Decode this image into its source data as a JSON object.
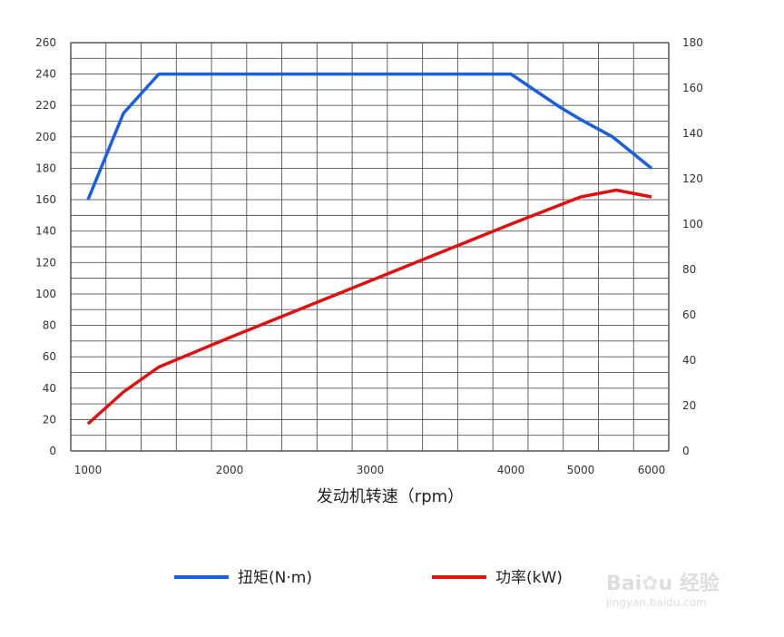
{
  "chart_data": {
    "type": "line",
    "xlabel": "发动机转速（rpm）",
    "x_ticks": [
      1000,
      2000,
      3000,
      4000,
      5000,
      6000
    ],
    "y_left": {
      "lim": [
        0,
        260
      ],
      "ticks": [
        0,
        20,
        40,
        60,
        80,
        100,
        120,
        140,
        160,
        180,
        200,
        220,
        240,
        260
      ]
    },
    "y_right": {
      "lim": [
        0,
        180
      ],
      "ticks": [
        0,
        20,
        40,
        60,
        80,
        100,
        120,
        140,
        160,
        180
      ]
    },
    "grid": true,
    "legend_placement": "bottom",
    "series": [
      {
        "name": "扭矩(N·m)",
        "axis": "left",
        "color": "#1a5fe0",
        "x": [
          1000,
          1250,
          1500,
          4000,
          4700,
          5000,
          5450,
          6000
        ],
        "values": [
          160,
          215,
          240,
          240,
          219,
          211,
          200,
          180
        ]
      },
      {
        "name": "功率(kW)",
        "axis": "right",
        "color": "#e01010",
        "x": [
          1000,
          1250,
          1500,
          2000,
          3000,
          4000,
          5000,
          5500,
          6000
        ],
        "values": [
          12,
          26,
          37,
          50,
          75,
          100,
          112,
          115,
          112
        ]
      }
    ]
  },
  "watermark": {
    "brand": "Bai du 经验",
    "url": "jingyan.baidu.com"
  }
}
